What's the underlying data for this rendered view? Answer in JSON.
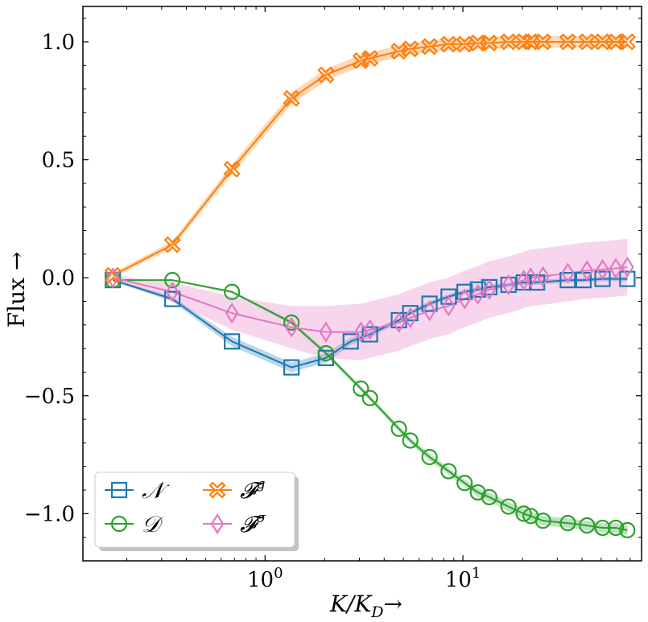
{
  "chart_data": {
    "type": "line",
    "title": "",
    "xlabel": "K/K_D →",
    "xlabel_main": "K/K",
    "xlabel_sub": "D",
    "xlabel_arrow": "→",
    "ylabel": "Flux →",
    "xscale": "log",
    "xlim": [
      0.12,
      80
    ],
    "ylim": [
      -1.2,
      1.15
    ],
    "xticks": [
      {
        "value": 1,
        "base": "10",
        "exp": "0"
      },
      {
        "value": 10,
        "base": "10",
        "exp": "1"
      }
    ],
    "yticks": [
      {
        "value": 1.0,
        "label": "1.0"
      },
      {
        "value": 0.5,
        "label": "0.5"
      },
      {
        "value": 0.0,
        "label": "0.0"
      },
      {
        "value": -0.5,
        "label": "−0.5"
      },
      {
        "value": -1.0,
        "label": "−1.0"
      }
    ],
    "grid": false,
    "legend_position": "bottom-left",
    "series": [
      {
        "name": "N",
        "legend_main": "𝒩",
        "legend_sup": "",
        "color": "#1f77b4",
        "marker": "square",
        "x": [
          0.17,
          0.34,
          0.68,
          1.36,
          2.03,
          2.71,
          3.39,
          4.75,
          5.42,
          6.78,
          8.47,
          10.2,
          11.9,
          13.6,
          17.0,
          20.3,
          23.7,
          33.9,
          40.7,
          50.8,
          67.8
        ],
        "y": [
          -0.01,
          -0.09,
          -0.27,
          -0.38,
          -0.34,
          -0.27,
          -0.24,
          -0.18,
          -0.15,
          -0.11,
          -0.08,
          -0.06,
          -0.05,
          -0.04,
          -0.03,
          -0.02,
          -0.02,
          -0.01,
          -0.01,
          -0.005,
          -0.005
        ],
        "band": [
          0.005,
          0.01,
          0.02,
          0.02,
          0.02,
          0.015,
          0.015,
          0.01,
          0.01,
          0.01,
          0.01,
          0.01,
          0.01,
          0.01,
          0.01,
          0.01,
          0.01,
          0.01,
          0.01,
          0.01,
          0.01
        ]
      },
      {
        "name": "D",
        "legend_main": "𝒟",
        "legend_sup": "",
        "color": "#2ca02c",
        "marker": "circle",
        "x": [
          0.17,
          0.34,
          0.68,
          1.36,
          2.03,
          3.05,
          3.39,
          4.75,
          5.42,
          6.78,
          8.47,
          10.2,
          11.9,
          13.6,
          17.0,
          20.3,
          22.0,
          25.4,
          33.9,
          42.4,
          50.8,
          59.3,
          67.8
        ],
        "y": [
          -0.01,
          -0.01,
          -0.06,
          -0.19,
          -0.32,
          -0.47,
          -0.51,
          -0.64,
          -0.69,
          -0.76,
          -0.82,
          -0.87,
          -0.91,
          -0.93,
          -0.97,
          -1.0,
          -1.01,
          -1.03,
          -1.04,
          -1.05,
          -1.06,
          -1.06,
          -1.07
        ],
        "band": [
          0.003,
          0.003,
          0.005,
          0.008,
          0.01,
          0.01,
          0.01,
          0.012,
          0.012,
          0.015,
          0.015,
          0.015,
          0.018,
          0.018,
          0.02,
          0.02,
          0.02,
          0.02,
          0.02,
          0.02,
          0.02,
          0.02,
          0.02
        ]
      },
      {
        "name": "F^g",
        "legend_main": "𝓕",
        "legend_sup": "g",
        "color": "#ff7f0e",
        "marker": "x-thick",
        "x": [
          0.17,
          0.34,
          0.68,
          1.36,
          2.03,
          3.05,
          3.39,
          4.75,
          5.42,
          6.78,
          8.47,
          10.2,
          11.9,
          13.6,
          17.0,
          20.3,
          22.0,
          25.4,
          33.9,
          42.4,
          50.8,
          59.3,
          67.8
        ],
        "y": [
          0.01,
          0.14,
          0.46,
          0.76,
          0.86,
          0.92,
          0.93,
          0.96,
          0.97,
          0.98,
          0.99,
          0.99,
          0.995,
          0.995,
          1.0,
          1.0,
          1.0,
          1.0,
          1.0,
          1.0,
          1.0,
          1.0,
          1.0
        ],
        "band": [
          0.01,
          0.015,
          0.02,
          0.025,
          0.025,
          0.025,
          0.025,
          0.025,
          0.025,
          0.025,
          0.025,
          0.025,
          0.025,
          0.025,
          0.025,
          0.025,
          0.025,
          0.025,
          0.025,
          0.025,
          0.025,
          0.025,
          0.025
        ]
      },
      {
        "name": "F^sigma",
        "legend_main": "𝓕",
        "legend_sup": "σ",
        "color": "#e377c2",
        "marker": "diamond",
        "x": [
          0.17,
          0.34,
          0.68,
          1.36,
          2.03,
          3.05,
          3.39,
          4.75,
          5.42,
          6.78,
          8.47,
          10.2,
          11.9,
          13.6,
          17.0,
          20.3,
          22.0,
          25.4,
          33.9,
          42.4,
          50.8,
          59.3,
          67.8
        ],
        "y": [
          0.0,
          -0.06,
          -0.15,
          -0.21,
          -0.23,
          -0.23,
          -0.22,
          -0.19,
          -0.17,
          -0.14,
          -0.12,
          -0.09,
          -0.07,
          -0.05,
          -0.03,
          -0.01,
          0.0,
          0.005,
          0.02,
          0.03,
          0.035,
          0.04,
          0.045
        ],
        "band": [
          0.01,
          0.04,
          0.07,
          0.09,
          0.11,
          0.12,
          0.12,
          0.12,
          0.12,
          0.12,
          0.12,
          0.12,
          0.12,
          0.12,
          0.12,
          0.12,
          0.12,
          0.12,
          0.12,
          0.12,
          0.12,
          0.12,
          0.12
        ]
      }
    ]
  }
}
